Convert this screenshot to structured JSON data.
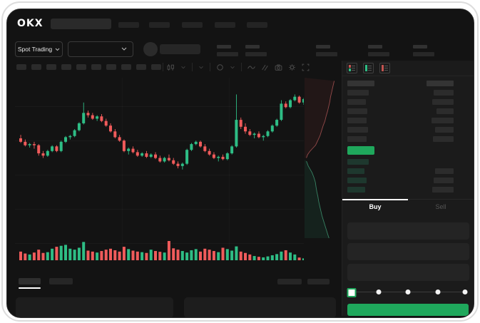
{
  "brand": {
    "logo_text": "OKX"
  },
  "top_nav": {
    "nav_item_count": 5,
    "has_search_bar": true
  },
  "symbol_bar": {
    "market_selector_label": "Spot Trading",
    "market_selector_icon": "chevron-down-icon",
    "pair_selector_icon": "chevron-down-icon",
    "stat_pair_count": 5
  },
  "chart_toolbar": {
    "interval_block_count": 10,
    "icons": [
      "candle-style-icon",
      "chevron-down-icon",
      "chevron-down-icon",
      "indicator-circle-icon",
      "chevron-down-icon",
      "wave-icon",
      "compare-lines-icon",
      "camera-icon",
      "settings-gear-icon",
      "fullscreen-icon"
    ]
  },
  "order_panel": {
    "view_icons": [
      "orderbook-combined-icon",
      "orderbook-bids-icon",
      "orderbook-asks-icon"
    ],
    "buy_tab_label": "Buy",
    "sell_tab_label": "Sell",
    "active_tab": "Buy",
    "input_count": 3,
    "slider": {
      "stop_count": 5,
      "selected_index": 0,
      "stop_percents": [
        0,
        25,
        50,
        75,
        100
      ]
    },
    "buy_button_label": ""
  },
  "order_book": {
    "header": {
      "left_w": 38,
      "right_w": 38
    },
    "ask_rows": [
      {
        "price_w": 30,
        "amount_w": 28
      },
      {
        "price_w": 26,
        "amount_w": 30
      },
      {
        "price_w": 28,
        "amount_w": 24
      },
      {
        "price_w": 27,
        "amount_w": 31
      },
      {
        "price_w": 29,
        "amount_w": 26
      },
      {
        "price_w": 27,
        "amount_w": 29
      }
    ],
    "last_price_highlight": "green",
    "bid_rows": [
      {
        "price_w": 30,
        "amount_w": 0
      },
      {
        "price_w": 24,
        "amount_w": 26
      },
      {
        "price_w": 27,
        "amount_w": 28
      },
      {
        "price_w": 25,
        "amount_w": 30
      }
    ]
  },
  "colors": {
    "candle_green": "#2EBD85",
    "candle_red": "#F05B5B",
    "buy_green": "#1FA85C",
    "bid_tint": "rgba(46,189,133,0.18)",
    "depth_ask_line": "rgba(230,110,110,0.6)",
    "depth_bid_line": "rgba(80,200,150,0.6)",
    "depth_ask_fill": "rgba(244,90,90,0.07)",
    "depth_bid_fill": "rgba(46,189,133,0.09)",
    "window_bg": "#131313",
    "panel_bg": "#1B1B1B"
  },
  "chart_data": {
    "type": "candlestick",
    "title": "",
    "axes_visible": false,
    "price_scale": "normalized_0_100",
    "candles": [
      [
        50,
        53,
        46,
        47
      ],
      [
        47,
        49,
        43,
        44
      ],
      [
        44,
        46,
        42,
        45
      ],
      [
        45,
        47,
        41,
        44
      ],
      [
        44,
        45,
        35,
        37
      ],
      [
        37,
        39,
        33,
        35
      ],
      [
        35,
        40,
        34,
        39
      ],
      [
        39,
        44,
        38,
        43
      ],
      [
        43,
        44,
        38,
        39
      ],
      [
        39,
        48,
        38,
        47
      ],
      [
        47,
        52,
        46,
        51
      ],
      [
        51,
        53,
        49,
        52
      ],
      [
        52,
        58,
        51,
        57
      ],
      [
        57,
        64,
        56,
        63
      ],
      [
        63,
        81,
        62,
        72
      ],
      [
        72,
        74,
        68,
        70
      ],
      [
        70,
        72,
        66,
        67
      ],
      [
        67,
        70,
        65,
        69
      ],
      [
        69,
        71,
        64,
        65
      ],
      [
        65,
        67,
        60,
        61
      ],
      [
        61,
        63,
        55,
        56
      ],
      [
        56,
        58,
        50,
        51
      ],
      [
        51,
        53,
        47,
        48
      ],
      [
        48,
        49,
        38,
        39
      ],
      [
        39,
        42,
        36,
        41
      ],
      [
        41,
        43,
        37,
        38
      ],
      [
        38,
        40,
        34,
        35
      ],
      [
        35,
        38,
        34,
        37
      ],
      [
        37,
        39,
        33,
        34
      ],
      [
        34,
        37,
        33,
        36
      ],
      [
        36,
        38,
        32,
        33
      ],
      [
        33,
        35,
        29,
        30
      ],
      [
        30,
        34,
        29,
        33
      ],
      [
        33,
        36,
        30,
        31
      ],
      [
        31,
        33,
        27,
        28
      ],
      [
        28,
        30,
        24,
        26
      ],
      [
        26,
        29,
        23,
        28
      ],
      [
        28,
        41,
        27,
        40
      ],
      [
        40,
        46,
        39,
        45
      ],
      [
        45,
        48,
        44,
        47
      ],
      [
        47,
        48,
        42,
        43
      ],
      [
        43,
        45,
        38,
        39
      ],
      [
        39,
        41,
        35,
        36
      ],
      [
        36,
        38,
        32,
        33
      ],
      [
        33,
        35,
        30,
        34
      ],
      [
        34,
        36,
        31,
        32
      ],
      [
        32,
        38,
        31,
        37
      ],
      [
        37,
        44,
        36,
        43
      ],
      [
        43,
        88,
        42,
        66
      ],
      [
        66,
        68,
        58,
        60
      ],
      [
        60,
        63,
        54,
        56
      ],
      [
        56,
        58,
        52,
        53
      ],
      [
        53,
        55,
        50,
        54
      ],
      [
        54,
        56,
        50,
        51
      ],
      [
        51,
        53,
        48,
        52
      ],
      [
        52,
        57,
        51,
        56
      ],
      [
        56,
        62,
        55,
        61
      ],
      [
        61,
        67,
        60,
        66
      ],
      [
        66,
        83,
        65,
        80
      ],
      [
        80,
        82,
        76,
        77
      ],
      [
        77,
        84,
        76,
        83
      ],
      [
        83,
        88,
        82,
        86
      ],
      [
        86,
        87,
        80,
        81
      ],
      [
        81,
        85,
        79,
        84
      ]
    ],
    "volume": [
      45,
      35,
      30,
      40,
      55,
      38,
      42,
      60,
      70,
      75,
      80,
      60,
      55,
      65,
      95,
      50,
      45,
      40,
      48,
      55,
      60,
      52,
      45,
      70,
      58,
      50,
      45,
      42,
      38,
      55,
      48,
      44,
      40,
      100,
      62,
      55,
      48,
      40,
      52,
      58,
      45,
      60,
      55,
      48,
      42,
      65,
      58,
      50,
      72,
      45,
      38,
      30,
      22,
      18,
      15,
      20,
      26,
      32,
      45,
      52,
      40,
      30,
      14,
      10
    ],
    "depth": {
      "asks_curve": [
        [
          80,
          2
        ],
        [
          76,
          6
        ],
        [
          73,
          9
        ],
        [
          70,
          12
        ],
        [
          68,
          15
        ],
        [
          65,
          18
        ],
        [
          62,
          21
        ],
        [
          58,
          24
        ],
        [
          55,
          27
        ],
        [
          50,
          30
        ],
        [
          46,
          33
        ],
        [
          42,
          36
        ],
        [
          36,
          39
        ],
        [
          30,
          42
        ],
        [
          22,
          44
        ],
        [
          14,
          46
        ],
        [
          8,
          48
        ],
        [
          5,
          50
        ]
      ],
      "bids_curve": [
        [
          5,
          52
        ],
        [
          10,
          55
        ],
        [
          15,
          57
        ],
        [
          20,
          59
        ],
        [
          25,
          62
        ],
        [
          29,
          65
        ],
        [
          31,
          68
        ],
        [
          33,
          71
        ],
        [
          36,
          74
        ],
        [
          38,
          77
        ],
        [
          41,
          80
        ],
        [
          44,
          83
        ],
        [
          47,
          86
        ],
        [
          51,
          89
        ],
        [
          55,
          92
        ],
        [
          59,
          95
        ],
        [
          63,
          98
        ],
        [
          66,
          100
        ]
      ]
    }
  }
}
